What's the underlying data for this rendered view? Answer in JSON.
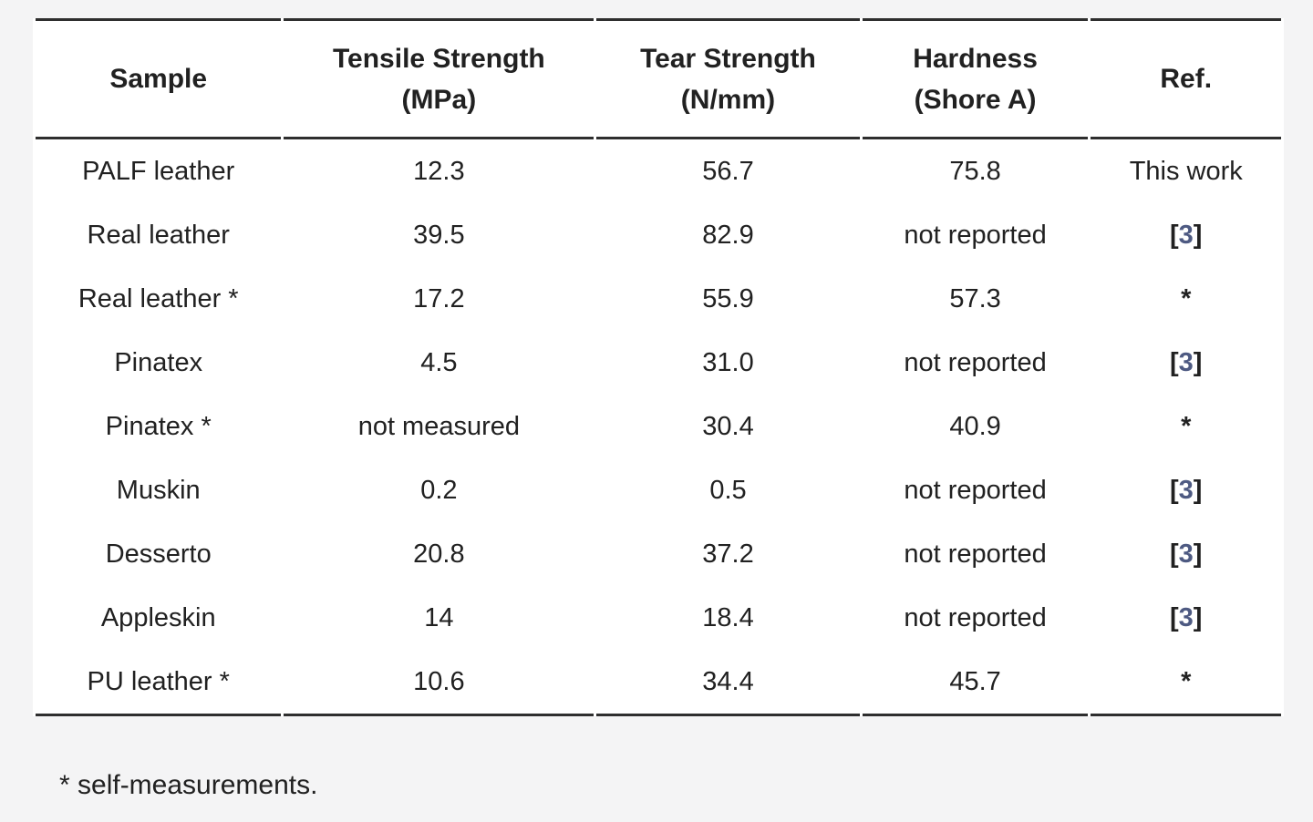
{
  "colors": {
    "page_background": "#f4f4f5",
    "table_background": "#ffffff",
    "rule": "#2e2e2e",
    "text": "#212121",
    "citation_number": "#4e5a82"
  },
  "table": {
    "columns": [
      {
        "key": "sample",
        "lines": [
          "Sample"
        ]
      },
      {
        "key": "tensile",
        "lines": [
          "Tensile Strength",
          "(MPa)"
        ]
      },
      {
        "key": "tear",
        "lines": [
          "Tear Strength",
          "(N/mm)"
        ]
      },
      {
        "key": "hardness",
        "lines": [
          "Hardness",
          "(Shore A)"
        ]
      },
      {
        "key": "ref",
        "lines": [
          "Ref."
        ]
      }
    ],
    "rows": [
      {
        "sample": "PALF leather",
        "tensile": "12.3",
        "tear": "56.7",
        "hardness": "75.8",
        "ref": {
          "kind": "text",
          "label": "This work"
        }
      },
      {
        "sample": "Real leather",
        "tensile": "39.5",
        "tear": "82.9",
        "hardness": "not reported",
        "ref": {
          "kind": "citation",
          "open": "[",
          "number": "3",
          "close": "]"
        }
      },
      {
        "sample": "Real leather *",
        "tensile": "17.2",
        "tear": "55.9",
        "hardness": "57.3",
        "ref": {
          "kind": "asterisk",
          "label": "*"
        }
      },
      {
        "sample": "Pinatex",
        "tensile": "4.5",
        "tear": "31.0",
        "hardness": "not reported",
        "ref": {
          "kind": "citation",
          "open": "[",
          "number": "3",
          "close": "]"
        }
      },
      {
        "sample": "Pinatex *",
        "tensile": "not measured",
        "tear": "30.4",
        "hardness": "40.9",
        "ref": {
          "kind": "asterisk",
          "label": "*"
        }
      },
      {
        "sample": "Muskin",
        "tensile": "0.2",
        "tear": "0.5",
        "hardness": "not reported",
        "ref": {
          "kind": "citation",
          "open": "[",
          "number": "3",
          "close": "]"
        }
      },
      {
        "sample": "Desserto",
        "tensile": "20.8",
        "tear": "37.2",
        "hardness": "not reported",
        "ref": {
          "kind": "citation",
          "open": "[",
          "number": "3",
          "close": "]"
        }
      },
      {
        "sample": "Appleskin",
        "tensile": "14",
        "tear": "18.4",
        "hardness": "not reported",
        "ref": {
          "kind": "citation",
          "open": "[",
          "number": "3",
          "close": "]"
        }
      },
      {
        "sample": "PU leather *",
        "tensile": "10.6",
        "tear": "34.4",
        "hardness": "45.7",
        "ref": {
          "kind": "asterisk",
          "label": "*"
        }
      }
    ]
  },
  "footnote": "* self-measurements."
}
